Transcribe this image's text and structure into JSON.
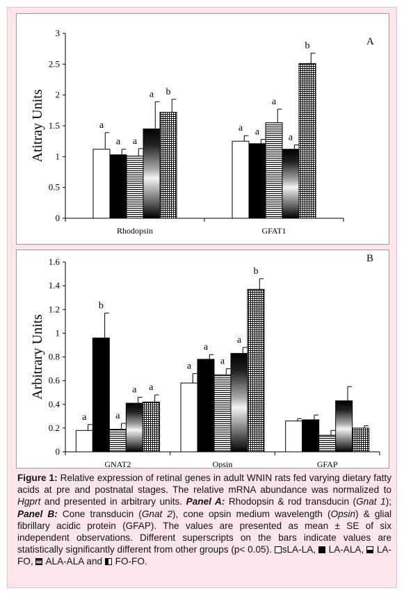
{
  "chart_data": [
    {
      "type": "bar",
      "panel_label": "A",
      "ylabel": "Atitray Units",
      "xlabel": "",
      "ylim": [
        0,
        3
      ],
      "yticks": [
        "0",
        "0.5",
        "1",
        "1.5",
        "2",
        "2.5",
        "3"
      ],
      "categories": [
        "Rhodopsin",
        "GFAT1"
      ],
      "series": [
        {
          "name": "sLA-LA",
          "values": [
            1.12,
            1.25
          ],
          "errors": [
            0.27,
            0.09
          ]
        },
        {
          "name": "LA-ALA",
          "values": [
            1.03,
            1.21
          ],
          "errors": [
            0.09,
            0.07
          ]
        },
        {
          "name": "LA-FO",
          "values": [
            1.01,
            1.55
          ],
          "errors": [
            0.12,
            0.22
          ]
        },
        {
          "name": "ALA-ALA",
          "values": [
            1.45,
            1.12
          ],
          "errors": [
            0.44,
            0.07
          ]
        },
        {
          "name": "FO-FO",
          "values": [
            1.72,
            2.51
          ],
          "errors": [
            0.21,
            0.17
          ]
        }
      ],
      "superscripts": [
        [
          "a",
          "a",
          "a",
          "a",
          "b"
        ],
        [
          "a",
          "a",
          "a",
          "a",
          "b"
        ]
      ],
      "grid": false
    },
    {
      "type": "bar",
      "panel_label": "B",
      "ylabel": "Arbitrary Units",
      "xlabel": "",
      "ylim": [
        0,
        1.6
      ],
      "yticks": [
        "0",
        "0.2",
        "0.4",
        "0.6",
        "0.8",
        "1",
        "1.2",
        "1.4",
        "1.6"
      ],
      "categories": [
        "GNAT2",
        "Opsin",
        "GFAP"
      ],
      "series": [
        {
          "name": "sLA-LA",
          "values": [
            0.18,
            0.58,
            0.26
          ],
          "errors": [
            0.05,
            0.08,
            0.02
          ]
        },
        {
          "name": "LA-ALA",
          "values": [
            0.96,
            0.78,
            0.27
          ],
          "errors": [
            0.21,
            0.04,
            0.04
          ]
        },
        {
          "name": "LA-FO",
          "values": [
            0.19,
            0.65,
            0.14
          ],
          "errors": [
            0.05,
            0.05,
            0.04
          ]
        },
        {
          "name": "ALA-ALA",
          "values": [
            0.41,
            0.83,
            0.43
          ],
          "errors": [
            0.05,
            0.05,
            0.12
          ]
        },
        {
          "name": "FO-FO",
          "values": [
            0.42,
            1.37,
            0.2
          ],
          "errors": [
            0.06,
            0.09,
            0.02
          ]
        }
      ],
      "superscripts": [
        [
          "a",
          "b",
          "a",
          "a",
          "a"
        ],
        [
          "a",
          "a",
          "a",
          "a",
          "b"
        ],
        [
          "",
          "",
          "",
          "",
          ""
        ]
      ],
      "grid": false
    }
  ],
  "caption": {
    "figure_label": "Figure 1:",
    "text_1": " Relative expression of retinal genes in adult WNIN rats fed varying dietary fatty acids at pre and postnatal stages. The relative mRNA abundance was normalized to ",
    "hgprt": "Hgprt",
    "text_2": " and presented in arbitrary units. ",
    "panel_a": "Panel A:",
    "text_3": " Rhodopsin & rod transducin (",
    "gnat1": "Gnat 1",
    "text_4": "); ",
    "panel_b": "Panel B:",
    "text_5": " Cone transducin (",
    "gnat2": "Gnat 2",
    "text_6": "), cone opsin medium wavelength (",
    "opsin": "Opsin",
    "text_7": ") & glial fibrillary acidic protein (GFAP). The values are presented as mean ± SE of six independent observations. Different superscripts on the bars indicate values are statistically significantly different from other groups (p< 0.05). ",
    "legend": [
      "sLA-LA,",
      " LA-ALA,",
      " LA-FO,",
      " ALA-ALA and",
      " FO-FO."
    ]
  }
}
